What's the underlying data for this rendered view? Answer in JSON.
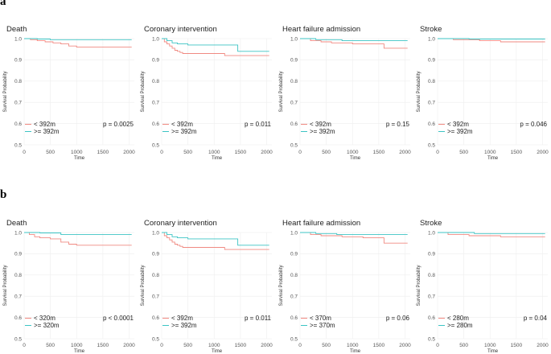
{
  "sections": [
    {
      "label": "a",
      "panels": [
        {
          "title": "Death",
          "p_value": "p = 0.0025",
          "legend": [
            "< 392m",
            ">= 392m"
          ]
        },
        {
          "title": "Coronary intervention",
          "p_value": "p = 0.011",
          "legend": [
            "< 392m",
            ">= 392m"
          ]
        },
        {
          "title": "Heart failure admission",
          "p_value": "p = 0.15",
          "legend": [
            "< 392m",
            ">= 392m"
          ]
        },
        {
          "title": "Stroke",
          "p_value": "p = 0.046",
          "legend": [
            "< 392m",
            ">= 392m"
          ]
        }
      ]
    },
    {
      "label": "b",
      "panels": [
        {
          "title": "Death",
          "p_value": "p < 0.0001",
          "legend": [
            "< 320m",
            ">= 320m"
          ]
        },
        {
          "title": "Coronary intervention",
          "p_value": "p = 0.011",
          "legend": [
            "< 392m",
            ">= 392m"
          ]
        },
        {
          "title": "Heart failure admission",
          "p_value": "p = 0.06",
          "legend": [
            "< 370m",
            ">= 370m"
          ]
        },
        {
          "title": "Stroke",
          "p_value": "p = 0.04",
          "legend": [
            "< 280m",
            ">= 280m"
          ]
        }
      ]
    }
  ],
  "colors": {
    "low": "#f08a82",
    "high": "#3cc4c4",
    "text": "#222222",
    "grid": "#eeeeee"
  },
  "chart_data": [
    {
      "type": "line",
      "panel": "a-Death",
      "title": "Death",
      "xlabel": "Time",
      "ylabel": "Survival Probability",
      "xlim": [
        0,
        2100
      ],
      "ylim": [
        0.5,
        1.0
      ],
      "xticks": [
        0,
        500,
        1000,
        1500,
        2000
      ],
      "yticks": [
        0.5,
        0.6,
        0.7,
        0.8,
        0.9,
        1.0
      ],
      "series": [
        {
          "name": "< 392m",
          "x": [
            0,
            120,
            250,
            400,
            550,
            700,
            850,
            1000,
            2050
          ],
          "y": [
            1.0,
            0.995,
            0.99,
            0.985,
            0.98,
            0.975,
            0.965,
            0.96,
            0.96
          ]
        },
        {
          "name": ">= 392m",
          "x": [
            0,
            250,
            500,
            2050
          ],
          "y": [
            1.0,
            0.998,
            0.995,
            0.995
          ]
        }
      ]
    },
    {
      "type": "line",
      "panel": "a-Coronary intervention",
      "title": "Coronary intervention",
      "xlabel": "Time",
      "ylabel": "Survival Probability",
      "xlim": [
        0,
        2100
      ],
      "ylim": [
        0.5,
        1.0
      ],
      "xticks": [
        0,
        500,
        1000,
        1500,
        2000
      ],
      "yticks": [
        0.5,
        0.6,
        0.7,
        0.8,
        0.9,
        1.0
      ],
      "series": [
        {
          "name": "< 392m",
          "x": [
            0,
            50,
            100,
            150,
            200,
            250,
            300,
            350,
            400,
            1200,
            2050
          ],
          "y": [
            1.0,
            0.985,
            0.975,
            0.965,
            0.955,
            0.945,
            0.94,
            0.935,
            0.93,
            0.92,
            0.92
          ]
        },
        {
          "name": ">= 392m",
          "x": [
            0,
            100,
            200,
            300,
            500,
            1450,
            2050
          ],
          "y": [
            1.0,
            0.99,
            0.98,
            0.975,
            0.97,
            0.94,
            0.94
          ]
        }
      ]
    },
    {
      "type": "line",
      "panel": "a-Heart failure admission",
      "title": "Heart failure admission",
      "xlabel": "Time",
      "ylabel": "Survival Probability",
      "xlim": [
        0,
        2100
      ],
      "ylim": [
        0.5,
        1.0
      ],
      "xticks": [
        0,
        500,
        1000,
        1500,
        2000
      ],
      "yticks": [
        0.5,
        0.6,
        0.7,
        0.8,
        0.9,
        1.0
      ],
      "series": [
        {
          "name": "< 392m",
          "x": [
            0,
            200,
            400,
            600,
            1000,
            1600,
            2050
          ],
          "y": [
            1.0,
            0.99,
            0.985,
            0.98,
            0.975,
            0.955,
            0.955
          ]
        },
        {
          "name": ">= 392m",
          "x": [
            0,
            300,
            800,
            2050
          ],
          "y": [
            1.0,
            0.995,
            0.99,
            0.99
          ]
        }
      ]
    },
    {
      "type": "line",
      "panel": "a-Stroke",
      "title": "Stroke",
      "xlabel": "Time",
      "ylabel": "Survival Probability",
      "xlim": [
        0,
        2100
      ],
      "ylim": [
        0.5,
        1.0
      ],
      "xticks": [
        0,
        500,
        1000,
        1500,
        2000
      ],
      "yticks": [
        0.5,
        0.6,
        0.7,
        0.8,
        0.9,
        1.0
      ],
      "series": [
        {
          "name": "< 392m",
          "x": [
            0,
            300,
            800,
            1200,
            2050
          ],
          "y": [
            1.0,
            0.995,
            0.99,
            0.985,
            0.985
          ]
        },
        {
          "name": ">= 392m",
          "x": [
            0,
            600,
            2050
          ],
          "y": [
            1.0,
            0.998,
            0.998
          ]
        }
      ]
    },
    {
      "type": "line",
      "panel": "b-Death",
      "title": "Death",
      "xlabel": "Time",
      "ylabel": "Survival Probability",
      "xlim": [
        0,
        2100
      ],
      "ylim": [
        0.5,
        1.0
      ],
      "xticks": [
        0,
        500,
        1000,
        1500,
        2000
      ],
      "yticks": [
        0.5,
        0.6,
        0.7,
        0.8,
        0.9,
        1.0
      ],
      "series": [
        {
          "name": "< 320m",
          "x": [
            0,
            100,
            200,
            300,
            500,
            700,
            850,
            1000,
            2050
          ],
          "y": [
            1.0,
            0.99,
            0.98,
            0.975,
            0.97,
            0.955,
            0.945,
            0.94,
            0.94
          ]
        },
        {
          "name": ">= 320m",
          "x": [
            0,
            300,
            700,
            2050
          ],
          "y": [
            1.0,
            0.998,
            0.99,
            0.99
          ]
        }
      ]
    },
    {
      "type": "line",
      "panel": "b-Coronary intervention",
      "title": "Coronary intervention",
      "xlabel": "Time",
      "ylabel": "Survival Probability",
      "xlim": [
        0,
        2100
      ],
      "ylim": [
        0.5,
        1.0
      ],
      "xticks": [
        0,
        500,
        1000,
        1500,
        2000
      ],
      "yticks": [
        0.5,
        0.6,
        0.7,
        0.8,
        0.9,
        1.0
      ],
      "series": [
        {
          "name": "< 392m",
          "x": [
            0,
            50,
            100,
            150,
            200,
            250,
            300,
            350,
            400,
            1200,
            2050
          ],
          "y": [
            1.0,
            0.985,
            0.975,
            0.965,
            0.955,
            0.945,
            0.94,
            0.935,
            0.93,
            0.92,
            0.92
          ]
        },
        {
          "name": ">= 392m",
          "x": [
            0,
            100,
            200,
            300,
            500,
            1450,
            2050
          ],
          "y": [
            1.0,
            0.99,
            0.98,
            0.975,
            0.97,
            0.94,
            0.94
          ]
        }
      ]
    },
    {
      "type": "line",
      "panel": "b-Heart failure admission",
      "title": "Heart failure admission",
      "xlabel": "Time",
      "ylabel": "Survival Probability",
      "xlim": [
        0,
        2100
      ],
      "ylim": [
        0.5,
        1.0
      ],
      "xticks": [
        0,
        500,
        1000,
        1500,
        2000
      ],
      "yticks": [
        0.5,
        0.6,
        0.7,
        0.8,
        0.9,
        1.0
      ],
      "series": [
        {
          "name": "< 370m",
          "x": [
            0,
            200,
            400,
            800,
            1200,
            1600,
            2050
          ],
          "y": [
            1.0,
            0.99,
            0.985,
            0.98,
            0.975,
            0.95,
            0.95
          ]
        },
        {
          "name": ">= 370m",
          "x": [
            0,
            300,
            700,
            2050
          ],
          "y": [
            1.0,
            0.995,
            0.99,
            0.99
          ]
        }
      ]
    },
    {
      "type": "line",
      "panel": "b-Stroke",
      "title": "Stroke",
      "xlabel": "Time",
      "ylabel": "Survival Probability",
      "xlim": [
        0,
        2100
      ],
      "ylim": [
        0.5,
        1.0
      ],
      "xticks": [
        0,
        500,
        1000,
        1500,
        2000
      ],
      "yticks": [
        0.5,
        0.6,
        0.7,
        0.8,
        0.9,
        1.0
      ],
      "series": [
        {
          "name": "< 280m",
          "x": [
            0,
            200,
            600,
            1200,
            2050
          ],
          "y": [
            1.0,
            0.99,
            0.985,
            0.98,
            0.98
          ]
        },
        {
          "name": ">= 280m",
          "x": [
            0,
            700,
            2050
          ],
          "y": [
            1.0,
            0.995,
            0.995
          ]
        }
      ]
    }
  ]
}
